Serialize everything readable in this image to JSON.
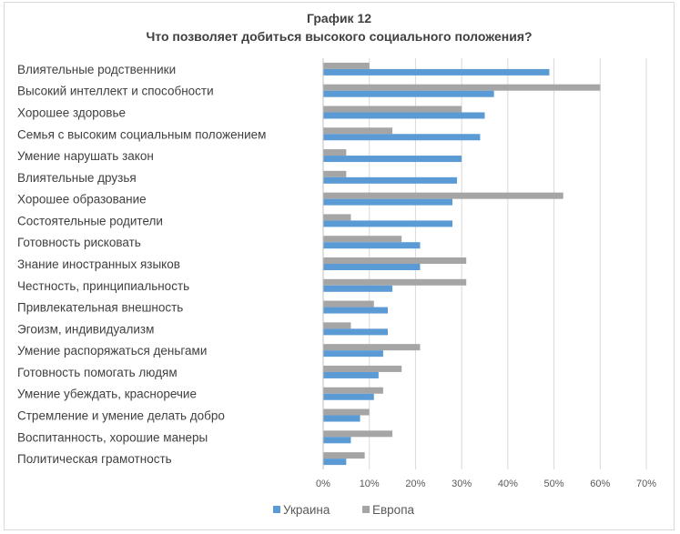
{
  "chart_data": {
    "type": "bar",
    "orientation": "horizontal",
    "title": "График 12",
    "subtitle": "Что позволяет добиться высокого социального положения?",
    "categories": [
      "Влиятельные родственники",
      "Высокий интеллект и способности",
      "Хорошее здоровье",
      "Семья с высоким социальным положением",
      "Умение нарушать закон",
      "Влиятельные друзья",
      "Хорошее образование",
      "Состоятельные родители",
      "Готовность рисковать",
      "Знание иностранных языков",
      "Честность, принципиальность",
      "Привлекательная внешность",
      "Эгоизм, индивидуализм",
      "Умение распоряжаться деньгами",
      "Готовность помогать людям",
      "Умение убеждать, красноречие",
      "Стремление и умение делать добро",
      "Воспитанность, хорошие манеры",
      "Политическая грамотность"
    ],
    "series": [
      {
        "name": "Украина",
        "color": "#5b9bd5",
        "values": [
          49,
          37,
          35,
          34,
          30,
          29,
          28,
          28,
          21,
          21,
          15,
          14,
          14,
          13,
          12,
          11,
          8,
          6,
          5
        ]
      },
      {
        "name": "Европа",
        "color": "#a5a5a5",
        "values": [
          10,
          60,
          30,
          15,
          5,
          5,
          52,
          6,
          17,
          31,
          31,
          11,
          6,
          21,
          17,
          13,
          10,
          15,
          9
        ]
      }
    ],
    "xlim": [
      0,
      70
    ],
    "x_ticks": [
      "0%",
      "10%",
      "20%",
      "30%",
      "40%",
      "50%",
      "60%",
      "70%"
    ],
    "grid": true,
    "legend_position": "bottom"
  }
}
